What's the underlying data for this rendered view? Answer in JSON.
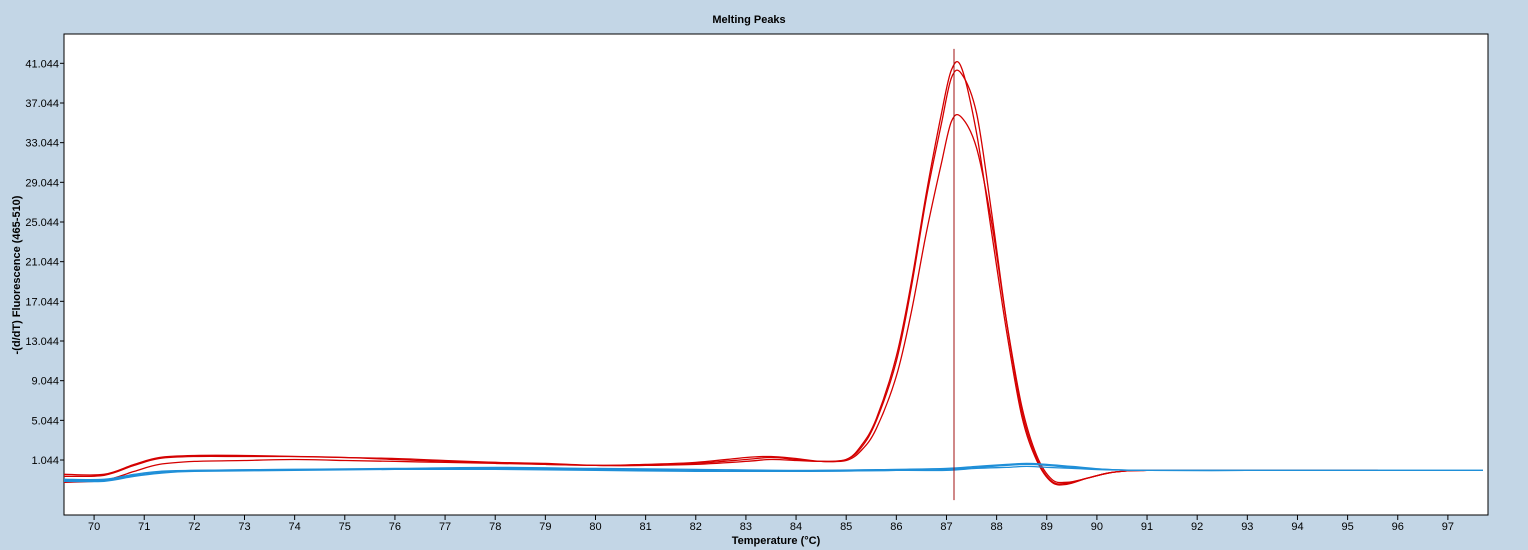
{
  "chart_data": {
    "type": "line",
    "title": "Melting Peaks",
    "xlabel": "Temperature (°C)",
    "ylabel": "-(d/dT) Fluorescence (465-510)",
    "xlim": [
      69.4,
      97.8
    ],
    "ylim": [
      -4.5,
      44.0
    ],
    "x_ticks": [
      70,
      71,
      72,
      73,
      74,
      75,
      76,
      77,
      78,
      79,
      80,
      81,
      82,
      83,
      84,
      85,
      86,
      87,
      88,
      89,
      90,
      91,
      92,
      93,
      94,
      95,
      96,
      97
    ],
    "y_ticks": [
      1.044,
      5.044,
      9.044,
      13.044,
      17.044,
      21.044,
      25.044,
      29.044,
      33.044,
      37.044,
      41.044
    ],
    "y_tick_labels": [
      "1.044",
      "5.044",
      "9.044",
      "13.044",
      "17.044",
      "21.044",
      "25.044",
      "29.044",
      "33.044",
      "37.044",
      "41.044"
    ],
    "grid": false,
    "legend": "none",
    "cursor_x": 87.15,
    "colors": {
      "background": "#c3d6e6",
      "plot_bg": "#ffffff",
      "red": "#d40000",
      "blue": "#1f8fd8",
      "cursor": "#a01010"
    },
    "series": [
      {
        "color": "#d40000",
        "x": [
          69.4,
          70.2,
          70.8,
          71.3,
          72,
          73,
          74,
          75,
          76,
          77,
          78,
          79,
          80,
          81,
          82,
          83,
          83.5,
          84,
          84.5,
          85,
          85.3,
          85.6,
          86,
          86.3,
          86.6,
          86.9,
          87.1,
          87.3,
          87.6,
          87.9,
          88.2,
          88.5,
          88.8,
          89.1,
          89.4,
          89.8,
          90.2,
          90.6,
          91,
          92,
          93,
          94,
          95,
          95.6
        ],
        "y": [
          -0.4,
          -0.4,
          0.6,
          1.3,
          1.5,
          1.5,
          1.4,
          1.3,
          1.2,
          1.0,
          0.8,
          0.7,
          0.5,
          0.6,
          0.8,
          1.3,
          1.4,
          1.2,
          0.9,
          1.1,
          2.5,
          5.2,
          11.5,
          19.0,
          28.0,
          36.0,
          40.4,
          40.6,
          34.0,
          24.0,
          14.0,
          5.5,
          1.0,
          -1.2,
          -1.4,
          -0.8,
          -0.3,
          -0.05,
          0.0,
          0.0,
          0.0,
          0.0,
          0.0,
          0.0
        ]
      },
      {
        "color": "#d40000",
        "x": [
          69.4,
          70.2,
          70.8,
          71.3,
          72,
          73,
          74,
          75,
          76,
          77,
          78,
          79,
          80,
          81,
          82,
          83,
          83.5,
          84,
          84.5,
          85,
          85.3,
          85.6,
          86,
          86.3,
          86.6,
          86.9,
          87.1,
          87.3,
          87.6,
          87.9,
          88.2,
          88.5,
          88.8,
          89.1,
          89.4,
          89.8,
          90.2,
          90.6,
          91,
          92,
          93,
          94,
          95,
          95.6
        ],
        "y": [
          -0.6,
          -0.5,
          0.5,
          1.2,
          1.4,
          1.4,
          1.4,
          1.3,
          1.1,
          0.9,
          0.8,
          0.6,
          0.5,
          0.5,
          0.7,
          1.1,
          1.3,
          1.1,
          0.9,
          1.1,
          2.3,
          5.0,
          11.0,
          18.5,
          27.5,
          35.0,
          39.6,
          40.0,
          36.0,
          26.0,
          15.0,
          6.0,
          1.2,
          -1.1,
          -1.3,
          -0.8,
          -0.3,
          -0.05,
          0.0,
          0.0,
          0.0,
          0.0,
          0.0,
          0.0
        ]
      },
      {
        "color": "#d40000",
        "x": [
          69.4,
          70.2,
          70.8,
          71.3,
          72,
          73,
          74,
          75,
          76,
          77,
          78,
          79,
          80,
          81,
          82,
          83,
          83.5,
          84,
          84.5,
          85,
          85.3,
          85.6,
          86,
          86.3,
          86.6,
          86.9,
          87.1,
          87.3,
          87.6,
          87.9,
          88.2,
          88.5,
          88.8,
          89.1,
          89.4,
          89.8,
          90.2,
          90.6,
          91,
          92,
          93,
          94,
          95,
          95.6
        ],
        "y": [
          -1.2,
          -1.0,
          -0.1,
          0.6,
          0.9,
          1.0,
          1.1,
          1.0,
          0.9,
          0.8,
          0.7,
          0.6,
          0.5,
          0.5,
          0.6,
          0.9,
          1.1,
          1.0,
          0.9,
          1.0,
          2.0,
          4.2,
          9.5,
          16.0,
          24.0,
          31.0,
          35.2,
          35.6,
          32.5,
          25.0,
          15.0,
          6.5,
          1.5,
          -0.9,
          -1.2,
          -0.8,
          -0.3,
          -0.05,
          0.0,
          0.0,
          0.0,
          0.0,
          0.0,
          0.0
        ]
      },
      {
        "color": "#1f8fd8",
        "x": [
          69.4,
          70.2,
          70.8,
          71.3,
          72,
          74,
          76,
          78,
          80,
          82,
          84,
          86,
          87,
          87.6,
          88.2,
          88.6,
          89,
          89.5,
          90.2,
          91,
          93,
          95,
          97.7
        ],
        "y": [
          -1.0,
          -1.0,
          -0.5,
          -0.2,
          0.0,
          0.1,
          0.2,
          0.3,
          0.2,
          0.1,
          0.0,
          0.1,
          0.2,
          0.4,
          0.6,
          0.7,
          0.6,
          0.4,
          0.1,
          0.0,
          0.0,
          0.0,
          0.0
        ]
      },
      {
        "color": "#1f8fd8",
        "x": [
          69.4,
          70.2,
          70.8,
          71.3,
          72,
          74,
          76,
          78,
          80,
          82,
          84,
          86,
          87,
          87.6,
          88.2,
          88.6,
          89,
          89.5,
          90.2,
          91,
          93,
          95,
          97.7
        ],
        "y": [
          -1.1,
          -1.1,
          -0.6,
          -0.3,
          -0.1,
          0.0,
          0.1,
          0.2,
          0.1,
          0.0,
          -0.1,
          0.0,
          0.1,
          0.3,
          0.5,
          0.6,
          0.5,
          0.3,
          0.1,
          0.0,
          0.0,
          0.0,
          0.0
        ]
      },
      {
        "color": "#1f8fd8",
        "x": [
          69.4,
          70.2,
          70.8,
          71.3,
          72,
          74,
          76,
          78,
          80,
          82,
          84,
          86,
          87,
          87.6,
          88.2,
          88.6,
          89,
          89.5,
          90.2,
          91,
          93,
          95,
          97.7
        ],
        "y": [
          -0.9,
          -0.9,
          -0.4,
          -0.1,
          0.0,
          0.1,
          0.1,
          0.1,
          0.0,
          -0.1,
          -0.1,
          0.0,
          0.0,
          0.2,
          0.3,
          0.4,
          0.3,
          0.2,
          0.05,
          0.0,
          0.0,
          0.0,
          0.0
        ]
      }
    ]
  }
}
